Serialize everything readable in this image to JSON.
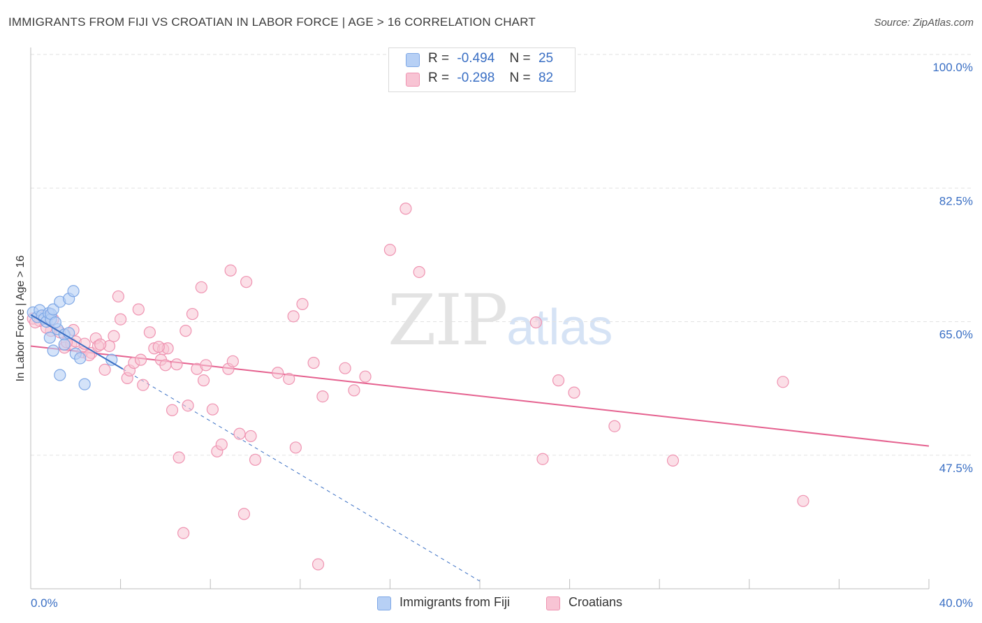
{
  "title": "IMMIGRANTS FROM FIJI VS CROATIAN IN LABOR FORCE | AGE > 16 CORRELATION CHART",
  "source": "Source: ZipAtlas.com",
  "watermark": {
    "zip": "ZIP",
    "atlas": "atlas"
  },
  "legend": {
    "fiji": {
      "r_label": "R =",
      "r_value": "-0.494",
      "n_label": "N =",
      "n_value": "25"
    },
    "croatians": {
      "r_label": "R =",
      "r_value": "-0.298",
      "n_label": "N =",
      "n_value": "82"
    }
  },
  "bottom_legend": {
    "fiji": "Immigrants from Fiji",
    "croatians": "Croatians"
  },
  "colors": {
    "fiji_fill": "#b7d0f5",
    "fiji_stroke": "#7fa8e6",
    "fiji_line": "#3a6fc4",
    "cro_fill": "#f8c4d4",
    "cro_stroke": "#ef93b1",
    "cro_line": "#e5618f",
    "tick_text": "#3a6fc4",
    "grid": "#e2e2e2"
  },
  "chart_data": {
    "type": "scatter",
    "title": "IMMIGRANTS FROM FIJI VS CROATIAN IN LABOR FORCE | AGE > 16 CORRELATION CHART",
    "xlabel": "",
    "ylabel": "In Labor Force | Age > 16",
    "xlim": [
      0,
      40
    ],
    "ylim": [
      30,
      100
    ],
    "x_tick_labels": [
      "0.0%",
      "40.0%"
    ],
    "y_ticks": [
      100.0,
      82.5,
      65.0,
      47.5
    ],
    "y_tick_labels": [
      "100.0%",
      "82.5%",
      "65.0%",
      "47.5%"
    ],
    "series": [
      {
        "name": "Immigrants from Fiji",
        "points": [
          [
            0.1,
            66.2
          ],
          [
            0.3,
            65.6
          ],
          [
            0.4,
            66.5
          ],
          [
            0.5,
            65.8
          ],
          [
            0.6,
            65.4
          ],
          [
            0.7,
            65.0
          ],
          [
            0.8,
            66.1
          ],
          [
            0.9,
            65.3
          ],
          [
            0.85,
            62.9
          ],
          [
            0.9,
            66.0
          ],
          [
            1.0,
            66.6
          ],
          [
            1.0,
            61.2
          ],
          [
            1.2,
            64.0
          ],
          [
            1.3,
            58.0
          ],
          [
            1.3,
            67.6
          ],
          [
            1.1,
            64.9
          ],
          [
            1.5,
            63.3
          ],
          [
            1.5,
            62.0
          ],
          [
            1.7,
            63.5
          ],
          [
            1.7,
            68.0
          ],
          [
            1.9,
            69.0
          ],
          [
            2.0,
            60.8
          ],
          [
            2.2,
            60.2
          ],
          [
            2.4,
            56.8
          ],
          [
            3.6,
            60.0
          ]
        ],
        "trend": {
          "x": [
            0.0,
            4.1
          ],
          "y": [
            65.9,
            58.8
          ]
        },
        "trend_extension": {
          "x": [
            4.1,
            20.0
          ],
          "y": [
            58.8,
            31.0
          ]
        }
      },
      {
        "name": "Croatians",
        "points": [
          [
            0.1,
            65.4
          ],
          [
            0.4,
            65.1
          ],
          [
            0.6,
            65.7
          ],
          [
            0.9,
            63.8
          ],
          [
            1.0,
            65.3
          ],
          [
            1.3,
            63.6
          ],
          [
            1.5,
            61.6
          ],
          [
            1.8,
            62.1
          ],
          [
            1.9,
            63.9
          ],
          [
            2.0,
            62.4
          ],
          [
            2.3,
            61.0
          ],
          [
            2.4,
            62.1
          ],
          [
            2.7,
            60.9
          ],
          [
            2.9,
            62.8
          ],
          [
            3.0,
            61.8
          ],
          [
            3.3,
            58.7
          ],
          [
            3.5,
            61.8
          ],
          [
            3.7,
            63.1
          ],
          [
            3.9,
            68.3
          ],
          [
            4.0,
            65.3
          ],
          [
            4.3,
            57.6
          ],
          [
            4.4,
            58.6
          ],
          [
            4.6,
            59.6
          ],
          [
            4.8,
            66.6
          ],
          [
            5.0,
            56.7
          ],
          [
            5.3,
            63.6
          ],
          [
            5.5,
            61.5
          ],
          [
            5.8,
            60.0
          ],
          [
            5.9,
            61.4
          ],
          [
            6.1,
            61.5
          ],
          [
            6.3,
            53.4
          ],
          [
            6.5,
            59.4
          ],
          [
            6.6,
            47.2
          ],
          [
            6.8,
            37.3
          ],
          [
            6.9,
            63.8
          ],
          [
            7.0,
            54.0
          ],
          [
            7.2,
            66.0
          ],
          [
            7.4,
            58.8
          ],
          [
            7.6,
            69.5
          ],
          [
            7.7,
            57.3
          ],
          [
            7.8,
            59.3
          ],
          [
            8.1,
            53.5
          ],
          [
            8.3,
            48.0
          ],
          [
            8.5,
            48.9
          ],
          [
            8.8,
            58.8
          ],
          [
            8.9,
            71.7
          ],
          [
            9.0,
            59.8
          ],
          [
            9.3,
            50.3
          ],
          [
            9.5,
            39.8
          ],
          [
            9.6,
            70.2
          ],
          [
            9.8,
            50.0
          ],
          [
            10.0,
            46.9
          ],
          [
            11.0,
            58.3
          ],
          [
            11.5,
            57.5
          ],
          [
            11.7,
            65.7
          ],
          [
            11.8,
            48.5
          ],
          [
            12.1,
            67.3
          ],
          [
            12.6,
            59.6
          ],
          [
            12.8,
            33.2
          ],
          [
            13.0,
            55.2
          ],
          [
            14.0,
            58.9
          ],
          [
            14.4,
            56.0
          ],
          [
            14.9,
            57.8
          ],
          [
            16.0,
            74.4
          ],
          [
            16.7,
            79.8
          ],
          [
            17.3,
            71.5
          ],
          [
            22.5,
            64.9
          ],
          [
            22.8,
            47.0
          ],
          [
            23.5,
            57.3
          ],
          [
            24.2,
            55.7
          ],
          [
            26.0,
            51.3
          ],
          [
            28.6,
            46.8
          ],
          [
            33.5,
            57.1
          ],
          [
            34.4,
            41.5
          ],
          [
            0.2,
            64.9
          ],
          [
            0.7,
            64.2
          ],
          [
            1.6,
            62.3
          ],
          [
            2.6,
            60.6
          ],
          [
            3.1,
            62.0
          ],
          [
            4.9,
            60.0
          ],
          [
            5.7,
            61.7
          ],
          [
            6.0,
            59.3
          ]
        ],
        "trend": {
          "x": [
            0.0,
            40.0
          ],
          "y": [
            61.8,
            48.7
          ]
        }
      }
    ]
  }
}
